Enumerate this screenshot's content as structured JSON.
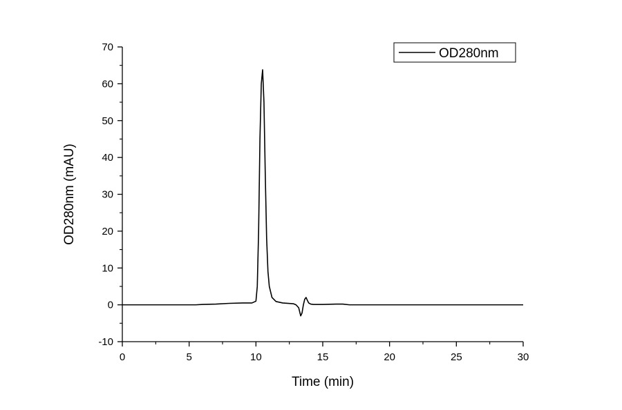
{
  "chart_data": {
    "type": "line",
    "xlabel": "Time (min)",
    "ylabel": "OD280nm (mAU)",
    "xlim": [
      0,
      30
    ],
    "ylim": [
      -10,
      70
    ],
    "x_ticks": [
      0,
      5,
      10,
      15,
      20,
      25,
      30
    ],
    "y_ticks": [
      -10,
      0,
      10,
      20,
      30,
      40,
      50,
      60,
      70
    ],
    "grid": false,
    "legend_position": "top-right",
    "series": [
      {
        "name": "OD280nm",
        "color": "#000000",
        "x": [
          0,
          3,
          5.5,
          6.0,
          7.0,
          8.0,
          9.0,
          9.7,
          10.0,
          10.1,
          10.2,
          10.3,
          10.4,
          10.5,
          10.6,
          10.7,
          10.8,
          10.9,
          11.0,
          11.2,
          11.5,
          12.0,
          12.8,
          13.0,
          13.2,
          13.35,
          13.45,
          13.55,
          13.65,
          13.75,
          13.85,
          13.95,
          14.1,
          14.3,
          15.0,
          16.0,
          16.5,
          17.0,
          18.0,
          20.0,
          25.0,
          30.0
        ],
        "y": [
          0,
          0,
          0,
          0.1,
          0.2,
          0.4,
          0.5,
          0.5,
          1.0,
          5.0,
          20.0,
          45.0,
          60.0,
          63.8,
          55.0,
          35.0,
          18.0,
          9.0,
          5.0,
          2.0,
          0.9,
          0.5,
          0.3,
          0.0,
          -0.8,
          -3.0,
          -2.2,
          0.0,
          1.5,
          2.0,
          1.2,
          0.5,
          0.2,
          0.1,
          0.1,
          0.2,
          0.2,
          0.0,
          0.0,
          0.0,
          0.0,
          0.0
        ]
      }
    ]
  }
}
